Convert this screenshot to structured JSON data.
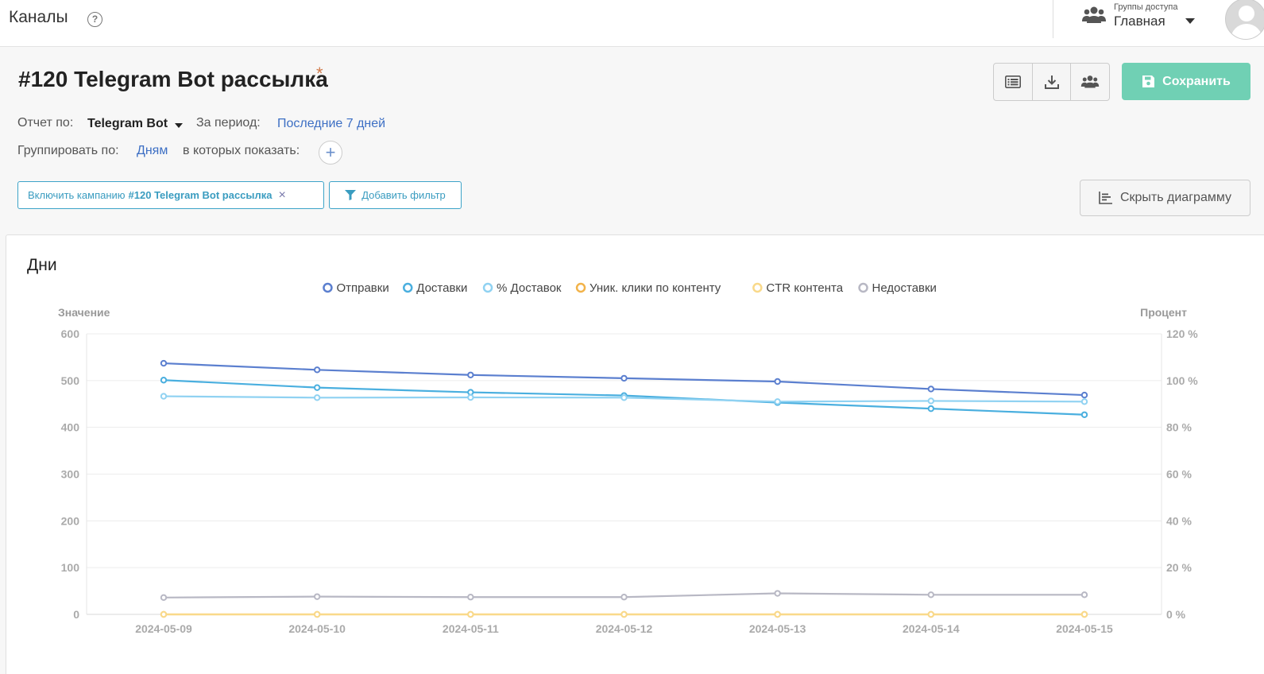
{
  "topbar": {
    "title": "Каналы",
    "help_icon": "?",
    "access_groups_label": "Группы доступа",
    "access_group_value": "Главная"
  },
  "report": {
    "title": "#120 Telegram Bot рассылка",
    "unsaved_marker": "*",
    "save_label": "Сохранить",
    "report_by_label": "Отчет по:",
    "report_by_value": "Telegram Bot",
    "period_label": "За период:",
    "period_value": "Последние 7 дней",
    "group_by_label": "Группировать по:",
    "group_by_value": "Дням",
    "show_in_label": "в которых показать:",
    "add_symbol": "+",
    "filter_chip_prefix": "Включить кампанию",
    "filter_chip_value": "#120 Telegram Bot рассылка",
    "filter_chip_close": "×",
    "add_filter_label": "Добавить фильтр",
    "hide_chart_label": "Скрыть диаграмму"
  },
  "colors": {
    "save_button": "#70d0b4",
    "link": "#3d6fc4",
    "filter_border": "#3da3c8"
  },
  "chart_data": {
    "type": "line",
    "title": "Дни",
    "y_left_label": "Значение",
    "y_right_label": "Процент",
    "y_left_range": [
      0,
      600
    ],
    "y_left_ticks": [
      "0",
      "100",
      "200",
      "300",
      "400",
      "500",
      "600"
    ],
    "y_right_range": [
      0,
      120
    ],
    "y_right_ticks": [
      "0 %",
      "20 %",
      "40 %",
      "60 %",
      "80 %",
      "100 %",
      "120 %"
    ],
    "grid": true,
    "legend_position": "top-center",
    "categories": [
      "2024-05-09",
      "2024-05-10",
      "2024-05-11",
      "2024-05-12",
      "2024-05-13",
      "2024-05-14",
      "2024-05-15"
    ],
    "series": [
      {
        "name": "Отправки",
        "axis": "left",
        "color": "#5b7fcf",
        "values": [
          537,
          523,
          512,
          505,
          498,
          482,
          469
        ]
      },
      {
        "name": "Доставки",
        "axis": "left",
        "color": "#4aafdf",
        "values": [
          501,
          485,
          475,
          468,
          453,
          440,
          427
        ]
      },
      {
        "name": "% Доставок",
        "axis": "right",
        "color": "#90d2f2",
        "values": [
          93.3,
          92.7,
          92.8,
          92.7,
          91.0,
          91.3,
          91.0
        ]
      },
      {
        "name": "Уник. клики по контенту",
        "axis": "left",
        "color": "#f2b34a",
        "values": [
          0,
          0,
          0,
          0,
          0,
          0,
          0
        ]
      },
      {
        "name": "CTR контента",
        "axis": "right",
        "color": "#f9d98a",
        "values": [
          0,
          0,
          0,
          0,
          0,
          0,
          0
        ]
      },
      {
        "name": "Недоставки",
        "axis": "left",
        "color": "#b8b8c4",
        "values": [
          36,
          38,
          37,
          37,
          45,
          42,
          42
        ]
      }
    ]
  }
}
